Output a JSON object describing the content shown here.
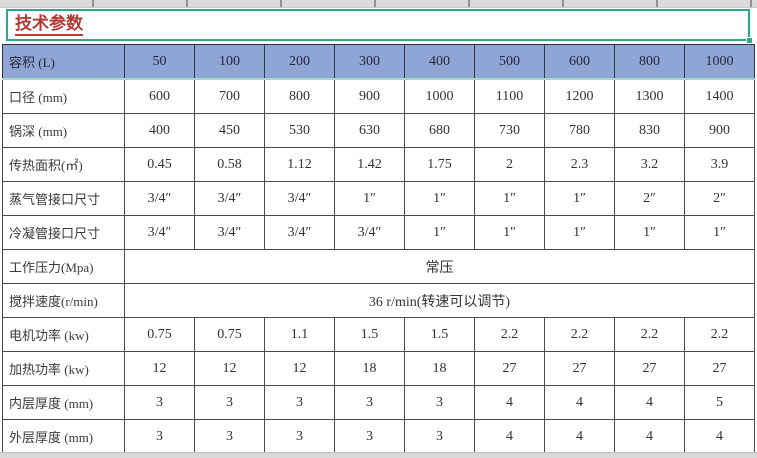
{
  "title": "技术参数",
  "colors": {
    "selection_green": "#27ab8c",
    "header_blue": "#8ea5d5",
    "title_red": "#b53a35",
    "grid_border": "#4a4a4a"
  },
  "table": {
    "header": {
      "label": "容积 (L)",
      "values": [
        "50",
        "100",
        "200",
        "300",
        "400",
        "500",
        "600",
        "800",
        "1000"
      ]
    },
    "rows": [
      {
        "label": "口径 (mm)",
        "values": [
          "600",
          "700",
          "800",
          "900",
          "1000",
          "1100",
          "1200",
          "1300",
          "1400"
        ]
      },
      {
        "label": "锅深 (mm)",
        "values": [
          "400",
          "450",
          "530",
          "630",
          "680",
          "730",
          "780",
          "830",
          "900"
        ]
      },
      {
        "label": "传热面积(㎡)",
        "values": [
          "0.45",
          "0.58",
          "1.12",
          "1.42",
          "1.75",
          "2",
          "2.3",
          "3.2",
          "3.9"
        ]
      },
      {
        "label": "蒸气管接口尺寸",
        "values": [
          "3/4″",
          "3/4″",
          "3/4″",
          "1″",
          "1″",
          "1″",
          "1″",
          "2″",
          "2″"
        ]
      },
      {
        "label": "冷凝管接口尺寸",
        "values": [
          "3/4″",
          "3/4″",
          "3/4″",
          "3/4″",
          "1″",
          "1″",
          "1″",
          "1″",
          "1″"
        ]
      },
      {
        "label": "工作压力(Mpa)",
        "merged": "常压"
      },
      {
        "label": "搅拌速度(r/min)",
        "merged": "36 r/min(转速可以调节)"
      },
      {
        "label": "电机功率 (kw)",
        "values": [
          "0.75",
          "0.75",
          "1.1",
          "1.5",
          "1.5",
          "2.2",
          "2.2",
          "2.2",
          "2.2"
        ]
      },
      {
        "label": "加热功率 (kw)",
        "values": [
          "12",
          "12",
          "12",
          "18",
          "18",
          "27",
          "27",
          "27",
          "27"
        ]
      },
      {
        "label": "内层厚度 (mm)",
        "values": [
          "3",
          "3",
          "3",
          "3",
          "3",
          "4",
          "4",
          "4",
          "5"
        ]
      },
      {
        "label": "外层厚度 (mm)",
        "values": [
          "3",
          "3",
          "3",
          "3",
          "3",
          "4",
          "4",
          "4",
          "4"
        ]
      }
    ]
  }
}
